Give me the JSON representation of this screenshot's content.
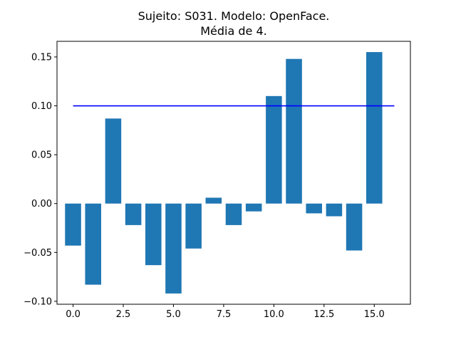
{
  "chart_data": {
    "type": "bar",
    "title": "Sujeito: S031. Modelo: OpenFace.",
    "subtitle": "Média de 4.",
    "x": [
      0,
      1,
      2,
      3,
      4,
      5,
      6,
      7,
      8,
      9,
      10,
      11,
      12,
      13,
      14,
      15
    ],
    "values": [
      -0.043,
      -0.083,
      0.087,
      -0.022,
      -0.063,
      -0.092,
      -0.046,
      0.006,
      -0.022,
      -0.008,
      0.11,
      0.148,
      -0.01,
      -0.013,
      -0.048,
      0.155
    ],
    "bar_color": "#1f77b4",
    "reference_line": {
      "y": 0.1,
      "x_range": [
        0,
        16
      ],
      "color": "#0000ff"
    },
    "xlim": [
      -0.8,
      16.8
    ],
    "ylim": [
      -0.103,
      0.166
    ],
    "xticks": [
      0.0,
      2.5,
      5.0,
      7.5,
      10.0,
      12.5,
      15.0
    ],
    "xtick_labels": [
      "0.0",
      "2.5",
      "5.0",
      "7.5",
      "10.0",
      "12.5",
      "15.0"
    ],
    "yticks": [
      -0.1,
      -0.05,
      0.0,
      0.05,
      0.1,
      0.15
    ],
    "ytick_labels": [
      "−0.10",
      "−0.05",
      "0.00",
      "0.05",
      "0.10",
      "0.15"
    ],
    "xlabel": "",
    "ylabel": "",
    "grid": false
  }
}
